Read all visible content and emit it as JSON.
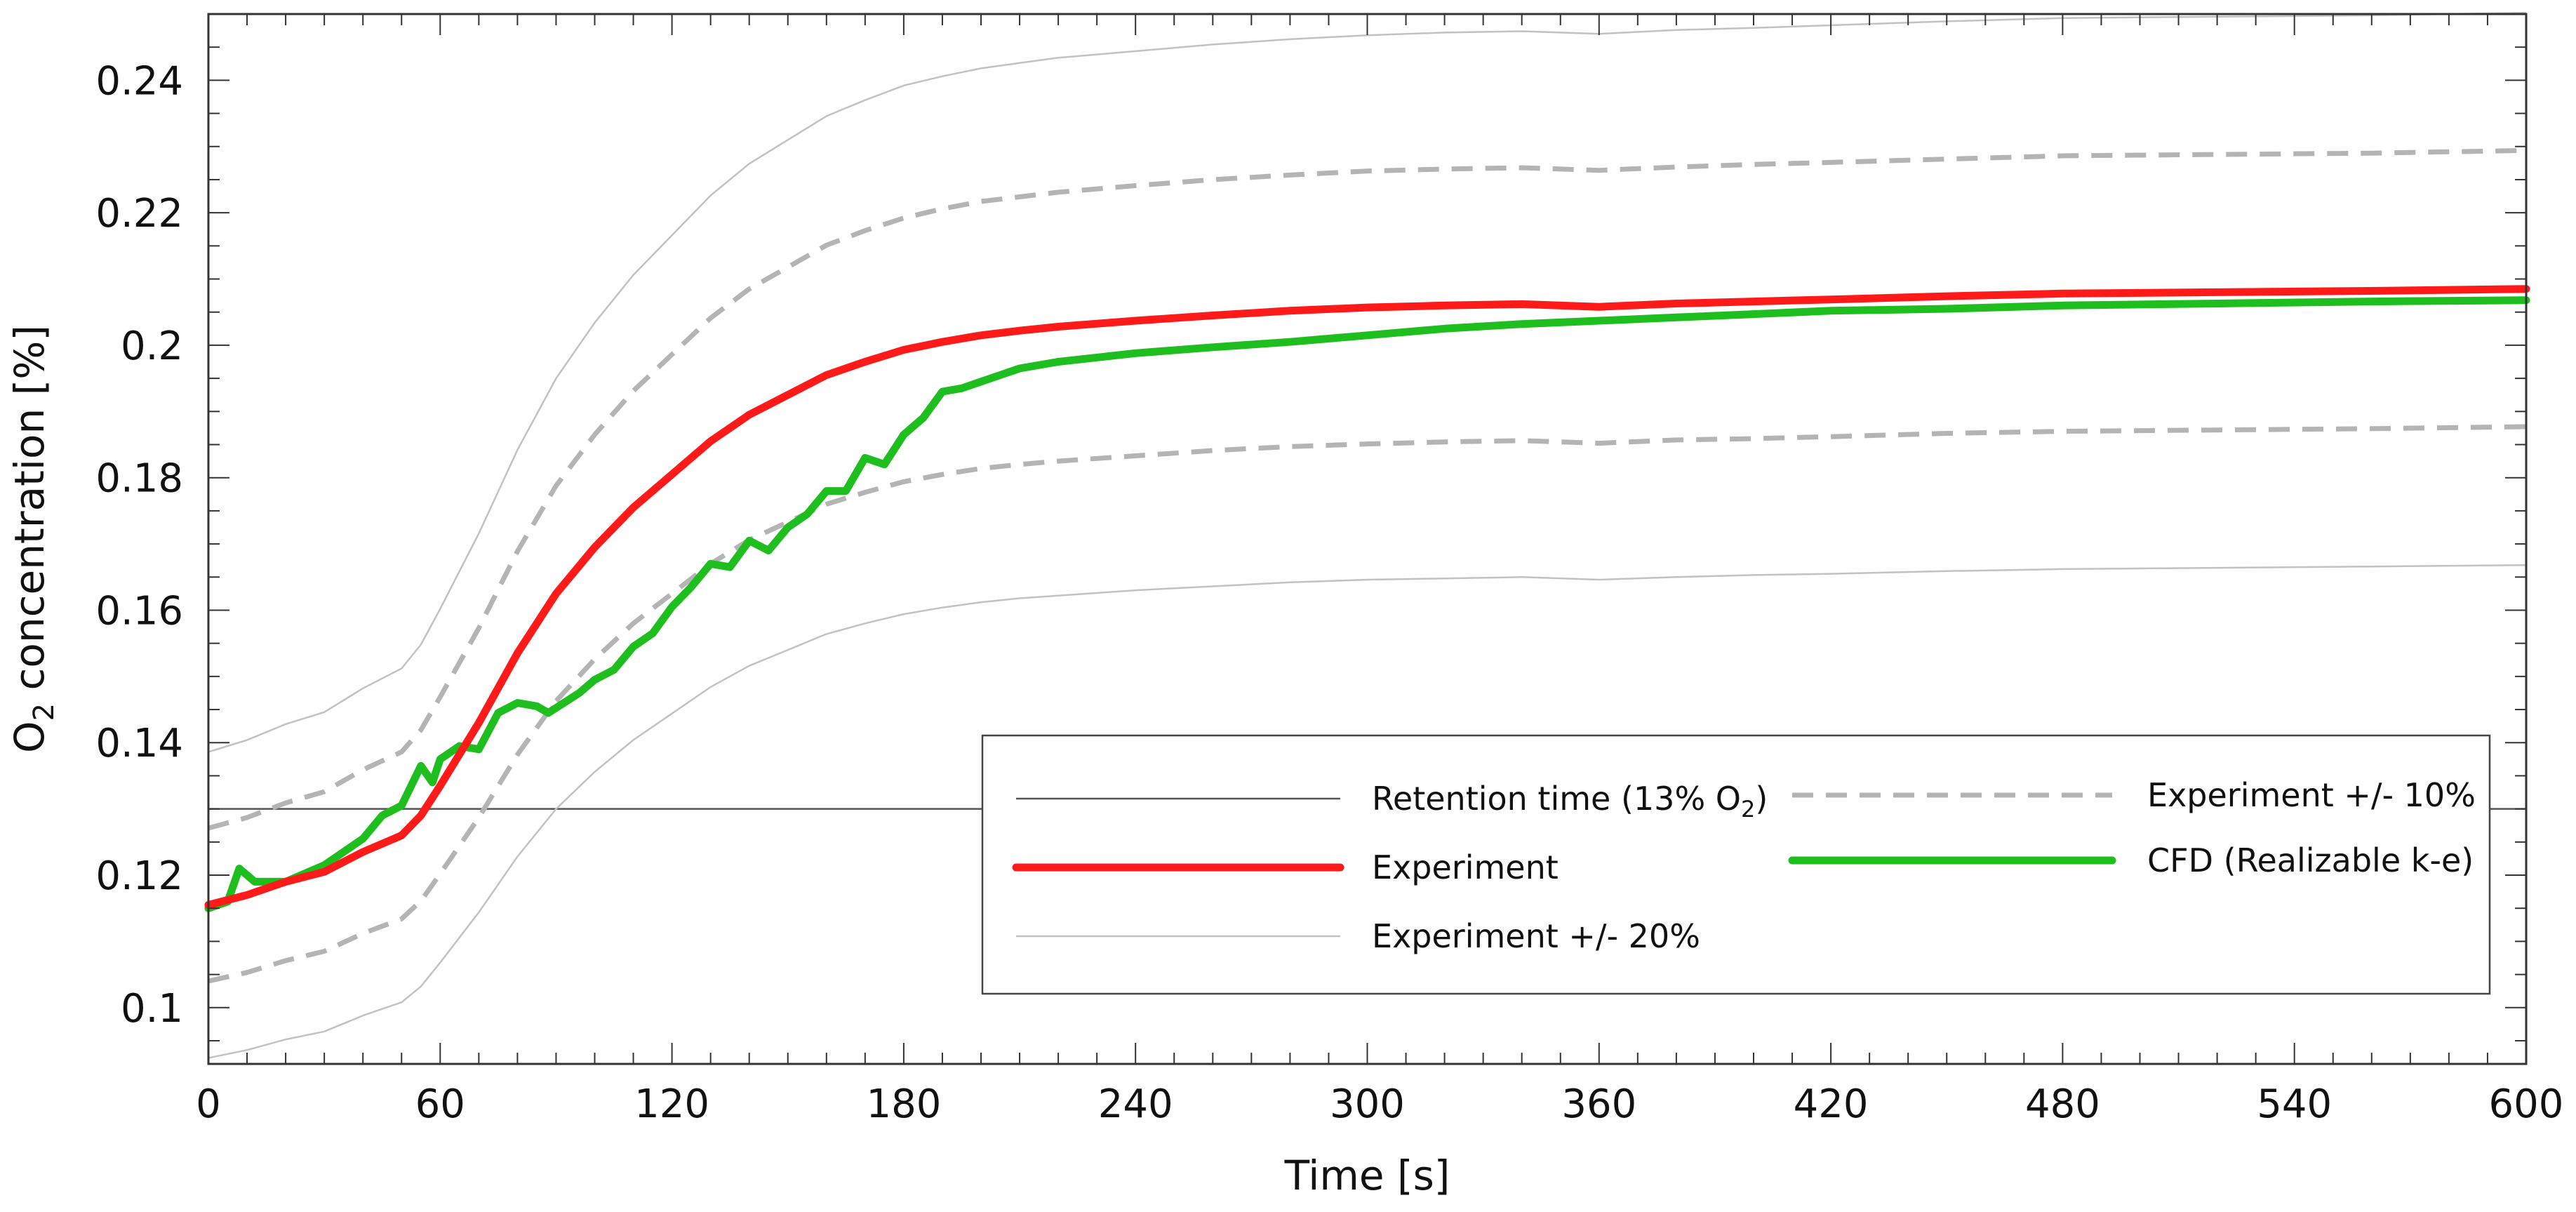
{
  "chart_data": {
    "type": "line",
    "title": "",
    "xlabel": "Time [s]",
    "ylabel_main": "O",
    "ylabel_sub": "2",
    "ylabel_rest": " concentration [%]",
    "xlim": [
      0,
      600
    ],
    "ylim": [
      0.0915,
      0.25
    ],
    "x_ticks": [
      0,
      60,
      120,
      180,
      240,
      300,
      360,
      420,
      480,
      540,
      600
    ],
    "x_tick_labels": [
      "0",
      "60",
      "120",
      "180",
      "240",
      "300",
      "360",
      "420",
      "480",
      "540",
      "600"
    ],
    "y_ticks": [
      0.1,
      0.12,
      0.14,
      0.16,
      0.18,
      0.2,
      0.22,
      0.24
    ],
    "y_tick_labels": [
      "0.1",
      "0.12",
      "0.14",
      "0.16",
      "0.18",
      "0.2",
      "0.22",
      "0.24"
    ],
    "x_minor_step": 10,
    "y_minor_step": 0.005,
    "grid": false,
    "legend_position": "bottom-right",
    "series": [
      {
        "name": "Retention time (13% O2)",
        "legend_main": "Retention time (13% O",
        "legend_sub": "2",
        "legend_tail": ")",
        "color": "#555555",
        "style": "solid-thin",
        "x": [
          0,
          600
        ],
        "y": [
          0.13,
          0.13
        ]
      },
      {
        "name": "Experiment",
        "legend_main": "Experiment",
        "color": "#ff1a1a",
        "style": "solid-thick",
        "x": [
          0,
          10,
          20,
          30,
          40,
          50,
          55,
          60,
          70,
          80,
          90,
          100,
          110,
          120,
          130,
          140,
          150,
          160,
          170,
          180,
          190,
          200,
          210,
          220,
          240,
          260,
          280,
          300,
          320,
          340,
          360,
          380,
          400,
          420,
          450,
          480,
          520,
          560,
          600
        ],
        "y": [
          0.1155,
          0.117,
          0.119,
          0.1205,
          0.1235,
          0.126,
          0.129,
          0.1335,
          0.143,
          0.1535,
          0.1625,
          0.1695,
          0.1755,
          0.1805,
          0.1855,
          0.1895,
          0.1925,
          0.1955,
          0.1975,
          0.1993,
          0.2005,
          0.2015,
          0.2022,
          0.2028,
          0.2037,
          0.2045,
          0.2052,
          0.2057,
          0.206,
          0.2062,
          0.2058,
          0.2063,
          0.2066,
          0.2069,
          0.2074,
          0.2078,
          0.208,
          0.2082,
          0.2085
        ]
      },
      {
        "name": "Experiment +/- 20%",
        "legend_main": "Experiment +/- 20%",
        "color": "#c2c2c2",
        "style": "solid-thin",
        "x": [
          0,
          10,
          20,
          30,
          40,
          50,
          55,
          60,
          70,
          80,
          90,
          100,
          110,
          120,
          130,
          140,
          150,
          160,
          170,
          180,
          190,
          200,
          210,
          220,
          240,
          260,
          280,
          300,
          320,
          340,
          360,
          380,
          400,
          420,
          450,
          480,
          520,
          560,
          600
        ],
        "y_upper": [
          0.1386,
          0.1404,
          0.1428,
          0.1446,
          0.1482,
          0.1512,
          0.1548,
          0.1602,
          0.1716,
          0.1842,
          0.195,
          0.2034,
          0.2106,
          0.2166,
          0.2226,
          0.2274,
          0.231,
          0.2346,
          0.237,
          0.2392,
          0.2406,
          0.2418,
          0.2426,
          0.2434,
          0.2444,
          0.2454,
          0.2462,
          0.2468,
          0.2472,
          0.2474,
          0.247,
          0.2476,
          0.2479,
          0.2483,
          0.2489,
          0.2494,
          0.2496,
          0.2498,
          0.2502
        ],
        "y_lower": [
          0.0924,
          0.0936,
          0.0952,
          0.0964,
          0.0988,
          0.1008,
          0.1032,
          0.1068,
          0.1144,
          0.1228,
          0.13,
          0.1356,
          0.1404,
          0.1444,
          0.1484,
          0.1516,
          0.154,
          0.1564,
          0.158,
          0.1594,
          0.1604,
          0.1612,
          0.1618,
          0.1622,
          0.163,
          0.1636,
          0.1642,
          0.1646,
          0.1648,
          0.165,
          0.1646,
          0.165,
          0.1653,
          0.1655,
          0.1659,
          0.1662,
          0.1664,
          0.1666,
          0.1668
        ]
      },
      {
        "name": "Experiment +/- 10%",
        "legend_main": "Experiment  +/- 10%",
        "color": "#b4b4b4",
        "style": "dashed",
        "x": [
          0,
          10,
          20,
          30,
          40,
          50,
          55,
          60,
          70,
          80,
          90,
          100,
          110,
          120,
          130,
          140,
          150,
          160,
          170,
          180,
          190,
          200,
          210,
          220,
          240,
          260,
          280,
          300,
          320,
          340,
          360,
          380,
          400,
          420,
          450,
          480,
          520,
          560,
          600
        ],
        "y_upper": [
          0.1271,
          0.1287,
          0.1309,
          0.1326,
          0.1359,
          0.1386,
          0.1419,
          0.1469,
          0.1573,
          0.1689,
          0.1788,
          0.1865,
          0.1931,
          0.1986,
          0.2041,
          0.2085,
          0.2118,
          0.2151,
          0.2173,
          0.2192,
          0.2206,
          0.2217,
          0.2224,
          0.2231,
          0.2241,
          0.225,
          0.2257,
          0.2263,
          0.2266,
          0.2268,
          0.2264,
          0.2269,
          0.2273,
          0.2276,
          0.2281,
          0.2286,
          0.2288,
          0.229,
          0.2294
        ],
        "y_lower": [
          0.104,
          0.1053,
          0.1071,
          0.1085,
          0.1112,
          0.1134,
          0.1161,
          0.1202,
          0.1287,
          0.1382,
          0.1463,
          0.1526,
          0.158,
          0.1625,
          0.167,
          0.1706,
          0.1733,
          0.176,
          0.1778,
          0.1794,
          0.1805,
          0.1814,
          0.182,
          0.1825,
          0.1833,
          0.1841,
          0.1847,
          0.1851,
          0.1854,
          0.1856,
          0.1852,
          0.1857,
          0.1859,
          0.1862,
          0.1867,
          0.187,
          0.1872,
          0.1874,
          0.1877
        ]
      },
      {
        "name": "CFD (Realizable k-e)",
        "legend_main": "CFD (Realizable k-e)",
        "color": "#1ebe1e",
        "style": "solid-thick",
        "x": [
          0,
          5,
          8,
          12,
          20,
          30,
          40,
          45,
          50,
          55,
          58,
          60,
          65,
          70,
          75,
          80,
          85,
          88,
          92,
          96,
          100,
          105,
          110,
          115,
          120,
          125,
          130,
          135,
          140,
          145,
          150,
          155,
          160,
          165,
          170,
          175,
          180,
          185,
          190,
          195,
          200,
          205,
          210,
          220,
          240,
          260,
          280,
          300,
          320,
          340,
          360,
          380,
          400,
          420,
          450,
          480,
          520,
          560,
          600
        ],
        "y": [
          0.115,
          0.116,
          0.121,
          0.119,
          0.119,
          0.1215,
          0.1255,
          0.129,
          0.1305,
          0.1365,
          0.134,
          0.1375,
          0.1395,
          0.139,
          0.1445,
          0.146,
          0.1455,
          0.1445,
          0.146,
          0.1475,
          0.1495,
          0.151,
          0.1545,
          0.1565,
          0.1605,
          0.1635,
          0.167,
          0.1665,
          0.1705,
          0.169,
          0.1725,
          0.1745,
          0.178,
          0.178,
          0.183,
          0.182,
          0.1865,
          0.189,
          0.193,
          0.1935,
          0.1945,
          0.1955,
          0.1965,
          0.1975,
          0.1988,
          0.1997,
          0.2005,
          0.2015,
          0.2025,
          0.2032,
          0.2037,
          0.2042,
          0.2047,
          0.2052,
          0.2055,
          0.206,
          0.2063,
          0.2066,
          0.2068
        ]
      }
    ]
  }
}
